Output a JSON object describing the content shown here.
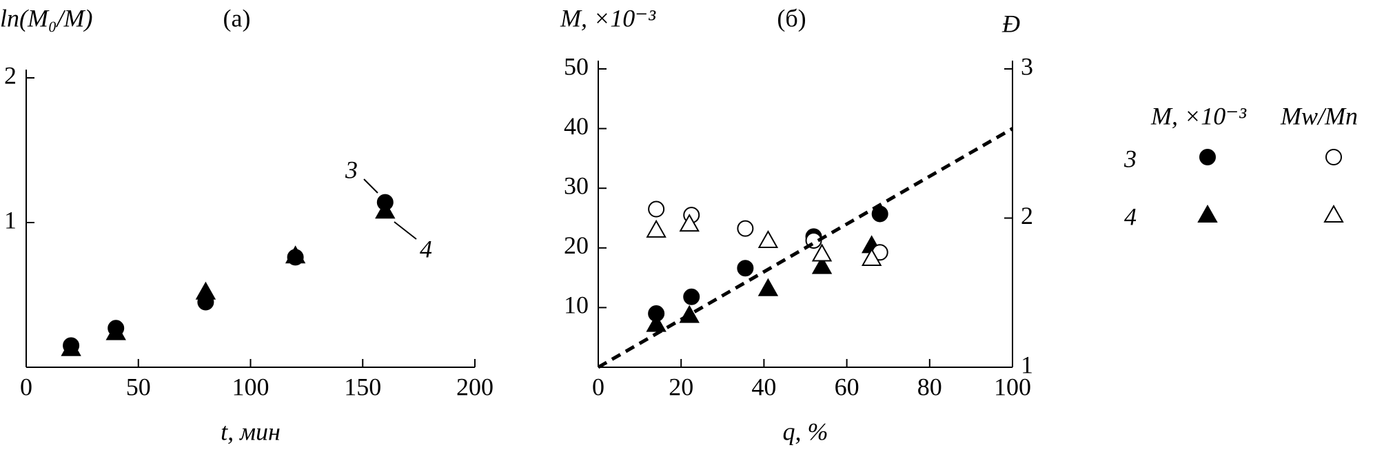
{
  "chart_data": [
    {
      "type": "scatter",
      "title": "(a)",
      "y_label": "ln(M₀/M)",
      "x_label": "t, мин",
      "xlim": [
        0,
        200
      ],
      "xticks": [
        0,
        50,
        100,
        150,
        200
      ],
      "ylim": [
        0,
        2
      ],
      "yticks": [
        1,
        2
      ],
      "series": [
        {
          "name": "3",
          "marker": "circle",
          "filled": true,
          "color": "#000000",
          "x": [
            20,
            40,
            80,
            120,
            160
          ],
          "values": [
            0.15,
            0.27,
            0.45,
            0.76,
            1.14
          ]
        },
        {
          "name": "4",
          "marker": "triangle",
          "filled": true,
          "color": "#000000",
          "x": [
            20,
            40,
            80,
            120,
            160
          ],
          "values": [
            0.13,
            0.24,
            0.52,
            0.77,
            1.08
          ]
        }
      ],
      "annotations": [
        "3",
        "4"
      ]
    },
    {
      "type": "scatter",
      "title": "(б)",
      "y_label": "M, ×10⁻³",
      "y2_label": "Đ",
      "x_label": "q, %",
      "xlim": [
        0,
        100
      ],
      "xticks": [
        0,
        20,
        40,
        60,
        80,
        100
      ],
      "ylim": [
        0,
        50
      ],
      "yticks": [
        10,
        20,
        30,
        40,
        50
      ],
      "y2lim": [
        1,
        3
      ],
      "y2ticks": [
        1,
        2,
        3
      ],
      "legend_columns": [
        "M, ×10⁻³",
        "Mw/Mn"
      ],
      "series": [
        {
          "name": "3",
          "marker": "circle",
          "filled": true,
          "color": "#000000",
          "x": [
            14,
            22.5,
            35.5,
            52,
            68
          ],
          "values": [
            9.0,
            11.8,
            16.6,
            21.9,
            25.7
          ]
        },
        {
          "name": "4",
          "marker": "triangle",
          "filled": true,
          "color": "#000000",
          "x": [
            14,
            22,
            41,
            54,
            66
          ],
          "values": [
            7.2,
            8.7,
            13.2,
            16.9,
            20.4
          ]
        },
        {
          "name": "3",
          "marker": "circle",
          "filled": false,
          "axis": "y2",
          "color": "#000000",
          "x": [
            14,
            22.5,
            35.5,
            52,
            68
          ],
          "values": [
            2.06,
            2.02,
            1.93,
            1.85,
            1.77
          ]
        },
        {
          "name": "4",
          "marker": "triangle",
          "filled": false,
          "axis": "y2",
          "color": "#000000",
          "x": [
            14,
            22,
            41,
            54,
            66
          ],
          "values": [
            1.92,
            1.96,
            1.85,
            1.76,
            1.73
          ]
        },
        {
          "line": "dashed",
          "color": "#000000",
          "x": [
            0,
            100
          ],
          "values": [
            0,
            40
          ]
        }
      ]
    }
  ]
}
